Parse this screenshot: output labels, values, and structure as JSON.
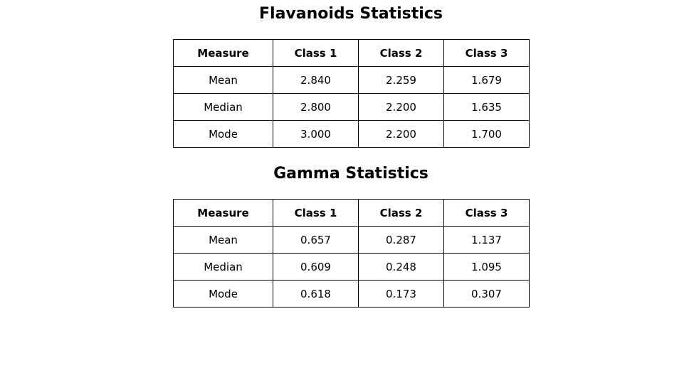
{
  "tables": [
    {
      "title": "Flavanoids Statistics",
      "headers": [
        "Measure",
        "Class 1",
        "Class 2",
        "Class 3"
      ],
      "rows": [
        [
          "Mean",
          "2.840",
          "2.259",
          "1.679"
        ],
        [
          "Median",
          "2.800",
          "2.200",
          "1.635"
        ],
        [
          "Mode",
          "3.000",
          "2.200",
          "1.700"
        ]
      ]
    },
    {
      "title": "Gamma Statistics",
      "headers": [
        "Measure",
        "Class 1",
        "Class 2",
        "Class 3"
      ],
      "rows": [
        [
          "Mean",
          "0.657",
          "0.287",
          "1.137"
        ],
        [
          "Median",
          "0.609",
          "0.248",
          "1.095"
        ],
        [
          "Mode",
          "0.618",
          "0.173",
          "0.307"
        ]
      ]
    }
  ]
}
